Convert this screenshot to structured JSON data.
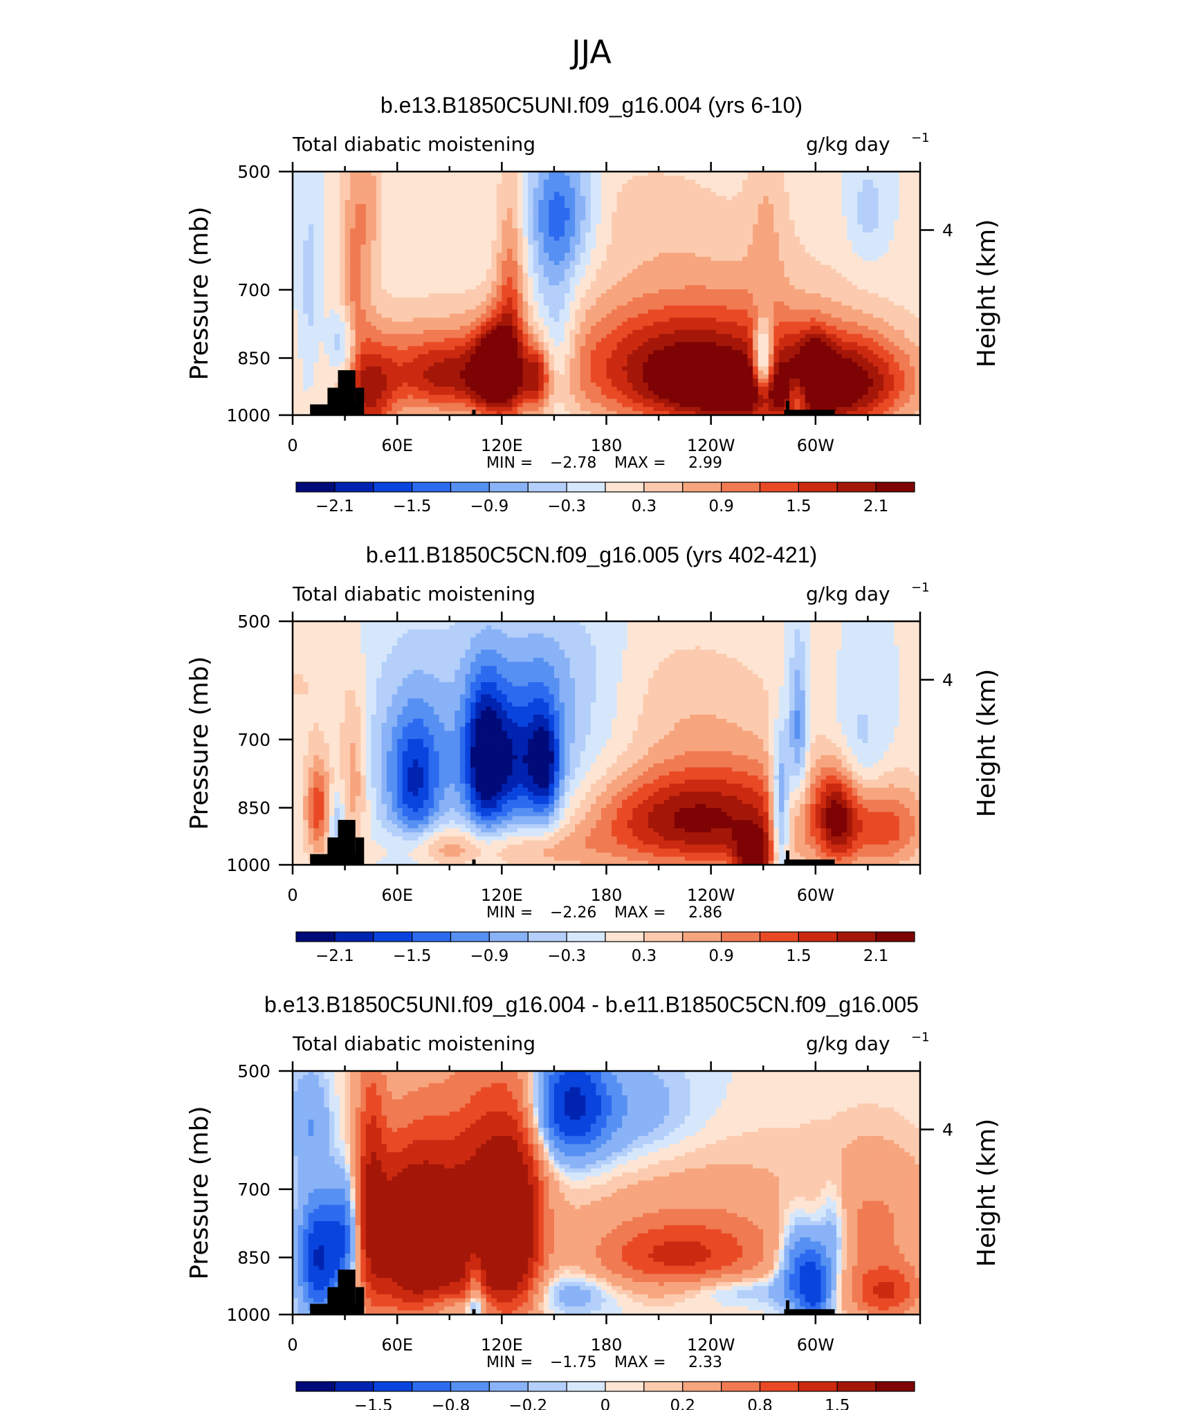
{
  "figure_title": "JJA",
  "colors": {
    "blue_shades": [
      "#000a78",
      "#0023b0",
      "#0a44de",
      "#2c6bf0",
      "#5690f2",
      "#89b2f7",
      "#b3cffa",
      "#d6e7fc"
    ],
    "red_shades": [
      "#fee5d3",
      "#fccbaf",
      "#f7a57e",
      "#f07a52",
      "#e94a25",
      "#cc2a10",
      "#a41708",
      "#7d0305"
    ],
    "topography": "#000000",
    "frame": "#000000"
  },
  "chart_data": [
    {
      "type": "heatmap",
      "name": "panel-top",
      "title": "b.e13.B1850C5UNI.f09_g16.004 (yrs 6-10)",
      "variable_label": "Total diabatic moistening",
      "units": "g/kg day",
      "units_exponent": "−1",
      "ylabel": "Pressure (mb)",
      "ylabel_right": "Height (km)",
      "x_ticks": [
        "0",
        "60E",
        "120E",
        "180",
        "120W",
        "60W"
      ],
      "x_range": [
        0,
        360
      ],
      "y_ticks": [
        "500",
        "700",
        "850",
        "1000"
      ],
      "y_range": [
        500,
        1000
      ],
      "y_right_ticks": [
        "4"
      ],
      "min_label": "MIN =",
      "min_value": "−2.78",
      "max_label": "MAX =",
      "max_value": "2.99",
      "colorbar_labels": [
        "−2.1",
        "−1.5",
        "−0.9",
        "−0.3",
        "0.3",
        "0.9",
        "1.5",
        "2.1"
      ]
    },
    {
      "type": "heatmap",
      "name": "panel-middle",
      "title": "b.e11.B1850C5CN.f09_g16.005 (yrs 402-421)",
      "variable_label": "Total diabatic moistening",
      "units": "g/kg day",
      "units_exponent": "−1",
      "ylabel": "Pressure (mb)",
      "ylabel_right": "Height (km)",
      "x_ticks": [
        "0",
        "60E",
        "120E",
        "180",
        "120W",
        "60W"
      ],
      "x_range": [
        0,
        360
      ],
      "y_ticks": [
        "500",
        "700",
        "850",
        "1000"
      ],
      "y_range": [
        500,
        1000
      ],
      "y_right_ticks": [
        "4"
      ],
      "min_label": "MIN =",
      "min_value": "−2.26",
      "max_label": "MAX =",
      "max_value": "2.86",
      "colorbar_labels": [
        "−2.1",
        "−1.5",
        "−0.9",
        "−0.3",
        "0.3",
        "0.9",
        "1.5",
        "2.1"
      ]
    },
    {
      "type": "heatmap",
      "name": "panel-difference",
      "title": "b.e13.B1850C5UNI.f09_g16.004 - b.e11.B1850C5CN.f09_g16.005",
      "variable_label": "Total diabatic moistening",
      "units": "g/kg day",
      "units_exponent": "−1",
      "ylabel": "Pressure (mb)",
      "ylabel_right": "Height (km)",
      "x_ticks": [
        "0",
        "60E",
        "120E",
        "180",
        "120W",
        "60W"
      ],
      "x_range": [
        0,
        360
      ],
      "y_ticks": [
        "500",
        "700",
        "850",
        "1000"
      ],
      "y_range": [
        500,
        1000
      ],
      "y_right_ticks": [
        "4"
      ],
      "min_label": "MIN =",
      "min_value": "−1.75",
      "max_label": "MAX =",
      "max_value": "2.33",
      "colorbar_labels": [
        "−1.5",
        "−0.8",
        "−0.2",
        "0",
        "0.2",
        "0.8",
        "1.5"
      ]
    }
  ]
}
